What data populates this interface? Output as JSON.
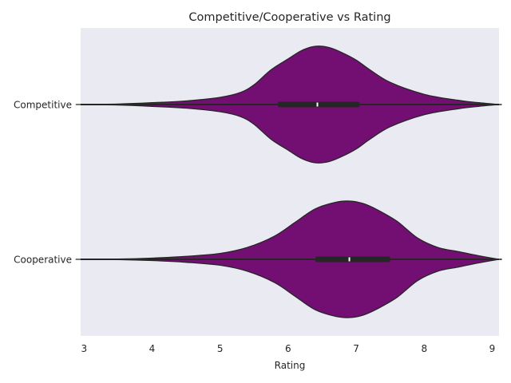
{
  "chart_data": {
    "type": "violin",
    "title": "Competitive/Cooperative vs Rating",
    "xlabel": "Rating",
    "ylabel": "",
    "xlim": [
      2.95,
      9.1
    ],
    "xticks": [
      3,
      4,
      5,
      6,
      7,
      8,
      9
    ],
    "grid": false,
    "orientation": "horizontal",
    "categories": [
      "Competitive",
      "Cooperative"
    ],
    "color": "#730f73",
    "edge_color": "#262626",
    "background": "#eaeaf2",
    "violins": [
      {
        "category": "Competitive",
        "box": {
          "q1": 5.85,
          "median": 6.43,
          "q3": 7.05,
          "whisker_low": 2.95,
          "whisker_high": 9.1
        },
        "density": [
          [
            2.95,
            0.0
          ],
          [
            3.5,
            0.008
          ],
          [
            4.0,
            0.03
          ],
          [
            4.5,
            0.06
          ],
          [
            5.0,
            0.12
          ],
          [
            5.3,
            0.2
          ],
          [
            5.5,
            0.33
          ],
          [
            5.75,
            0.58
          ],
          [
            6.0,
            0.76
          ],
          [
            6.2,
            0.9
          ],
          [
            6.4,
            0.97
          ],
          [
            6.6,
            0.95
          ],
          [
            6.8,
            0.86
          ],
          [
            7.0,
            0.74
          ],
          [
            7.2,
            0.58
          ],
          [
            7.5,
            0.37
          ],
          [
            8.0,
            0.17
          ],
          [
            8.5,
            0.07
          ],
          [
            8.8,
            0.03
          ],
          [
            9.1,
            0.0
          ]
        ]
      },
      {
        "category": "Cooperative",
        "box": {
          "q1": 6.4,
          "median": 6.9,
          "q3": 7.5,
          "whisker_low": 2.95,
          "whisker_high": 9.1
        },
        "density": [
          [
            2.95,
            0.0
          ],
          [
            3.5,
            0.004
          ],
          [
            4.0,
            0.02
          ],
          [
            4.5,
            0.05
          ],
          [
            5.0,
            0.1
          ],
          [
            5.4,
            0.2
          ],
          [
            5.8,
            0.39
          ],
          [
            6.1,
            0.62
          ],
          [
            6.4,
            0.85
          ],
          [
            6.7,
            0.96
          ],
          [
            6.9,
            0.98
          ],
          [
            7.1,
            0.94
          ],
          [
            7.3,
            0.84
          ],
          [
            7.6,
            0.64
          ],
          [
            7.9,
            0.36
          ],
          [
            8.2,
            0.2
          ],
          [
            8.5,
            0.13
          ],
          [
            8.8,
            0.06
          ],
          [
            9.1,
            0.0
          ]
        ]
      }
    ]
  }
}
